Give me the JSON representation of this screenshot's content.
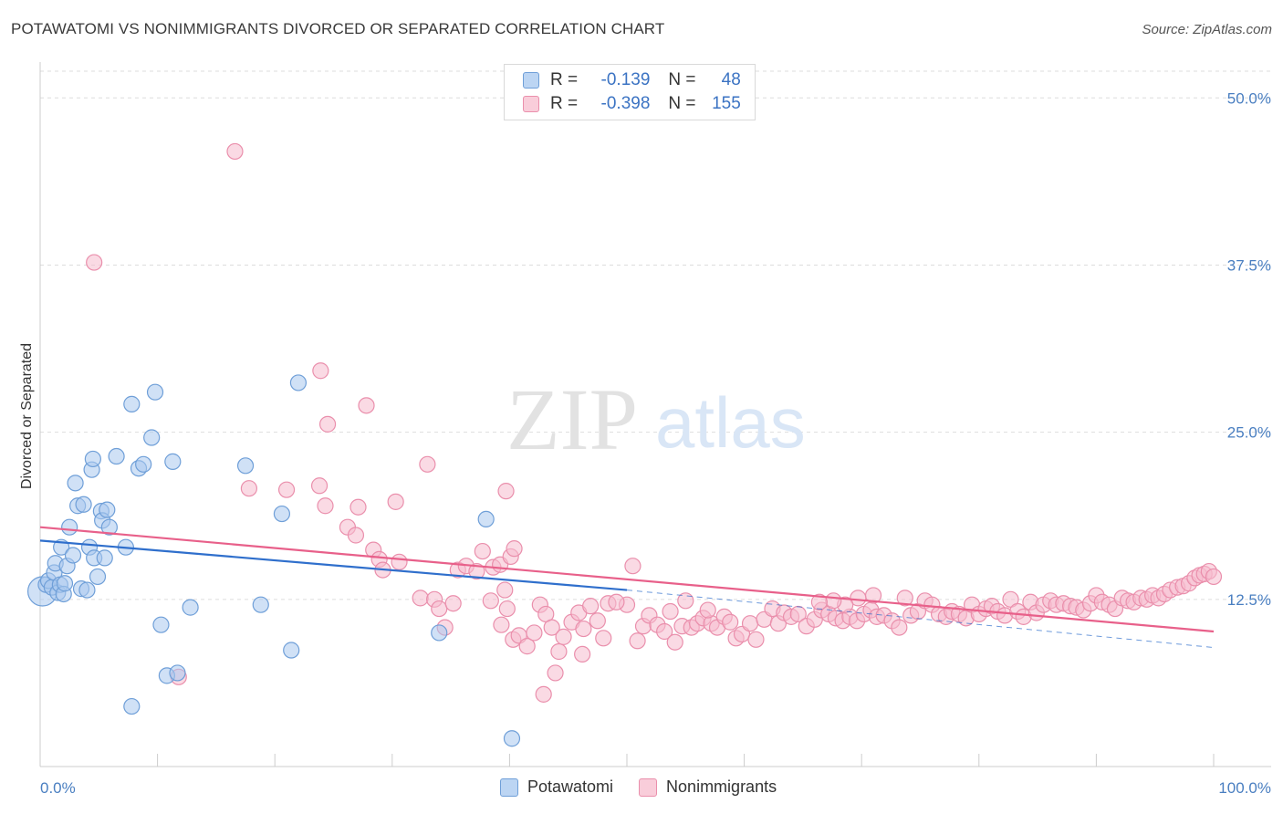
{
  "title": "POTAWATOMI VS NONIMMIGRANTS DIVORCED OR SEPARATED CORRELATION CHART",
  "source": "Source: ZipAtlas.com",
  "watermark": {
    "zip": "ZIP",
    "atlas": "atlas"
  },
  "legend": {
    "rows": [
      {
        "r_label": "R =",
        "r_value": "-0.139",
        "n_label": "N =",
        "n_value": "48"
      },
      {
        "r_label": "R =",
        "r_value": "-0.398",
        "n_label": "N =",
        "n_value": "155"
      }
    ]
  },
  "bottom_legend": [
    "Potawatomi",
    "Nonimmigrants"
  ],
  "colors": {
    "blue_fill": "#a9c8ef",
    "blue_stroke": "#6f9fd8",
    "blue_line": "#2f6fcc",
    "pink_fill": "#f6bccd",
    "pink_stroke": "#ea8fac",
    "pink_line": "#e8608a",
    "grid": "#dddddd",
    "axis_text": "#4a7fc1"
  },
  "chart_data": {
    "type": "scatter",
    "title": "POTAWATOMI VS NONIMMIGRANTS DIVORCED OR SEPARATED CORRELATION CHART",
    "xlabel": "",
    "ylabel": "Divorced or Separated",
    "xlim": [
      0,
      100
    ],
    "ylim": [
      0,
      52
    ],
    "x_tick_labels": [
      "0.0%",
      "100.0%"
    ],
    "y_ticks": [
      12.5,
      25.0,
      37.5,
      50.0
    ],
    "y_tick_labels": [
      "12.5%",
      "25.0%",
      "37.5%",
      "50.0%"
    ],
    "grid": true,
    "legend_position": "top-center",
    "series": [
      {
        "name": "Potawatomi",
        "r": -0.139,
        "n": 48,
        "trend": {
          "x": [
            0,
            50
          ],
          "y": [
            16.9,
            13.2
          ],
          "dashed_to": [
            100,
            8.9
          ]
        },
        "points": [
          [
            0.2,
            13.1
          ],
          [
            0.5,
            13.6
          ],
          [
            0.7,
            13.9
          ],
          [
            1.0,
            13.4
          ],
          [
            1.2,
            14.5
          ],
          [
            1.3,
            15.2
          ],
          [
            1.5,
            13.0
          ],
          [
            1.7,
            13.6
          ],
          [
            1.8,
            16.4
          ],
          [
            2.0,
            12.9
          ],
          [
            2.1,
            13.7
          ],
          [
            2.3,
            15.0
          ],
          [
            2.5,
            17.9
          ],
          [
            2.8,
            15.8
          ],
          [
            3.0,
            21.2
          ],
          [
            3.2,
            19.5
          ],
          [
            3.5,
            13.3
          ],
          [
            3.7,
            19.6
          ],
          [
            4.0,
            13.2
          ],
          [
            4.2,
            16.4
          ],
          [
            4.4,
            22.2
          ],
          [
            4.5,
            23.0
          ],
          [
            4.6,
            15.6
          ],
          [
            4.9,
            14.2
          ],
          [
            5.2,
            19.1
          ],
          [
            5.3,
            18.4
          ],
          [
            5.5,
            15.6
          ],
          [
            5.7,
            19.2
          ],
          [
            5.9,
            17.9
          ],
          [
            6.5,
            23.2
          ],
          [
            7.3,
            16.4
          ],
          [
            7.8,
            27.1
          ],
          [
            8.4,
            22.3
          ],
          [
            8.8,
            22.6
          ],
          [
            9.5,
            24.6
          ],
          [
            9.8,
            28.0
          ],
          [
            10.3,
            10.6
          ],
          [
            10.8,
            6.8
          ],
          [
            11.3,
            22.8
          ],
          [
            11.7,
            7.0
          ],
          [
            12.8,
            11.9
          ],
          [
            17.5,
            22.5
          ],
          [
            18.8,
            12.1
          ],
          [
            20.6,
            18.9
          ],
          [
            21.4,
            8.7
          ],
          [
            22.0,
            28.7
          ],
          [
            34.0,
            10.0
          ],
          [
            38.0,
            18.5
          ],
          [
            40.2,
            2.1
          ],
          [
            7.8,
            4.5
          ]
        ]
      },
      {
        "name": "Nonimmigrants",
        "r": -0.398,
        "n": 155,
        "trend": {
          "x": [
            0,
            100
          ],
          "y": [
            17.9,
            10.1
          ]
        },
        "points": [
          [
            11.8,
            6.7
          ],
          [
            16.6,
            46.0
          ],
          [
            4.6,
            37.7
          ],
          [
            23.9,
            29.6
          ],
          [
            27.8,
            27.0
          ],
          [
            24.5,
            25.6
          ],
          [
            21.0,
            20.7
          ],
          [
            17.8,
            20.8
          ],
          [
            23.8,
            21.0
          ],
          [
            33.0,
            22.6
          ],
          [
            39.7,
            20.6
          ],
          [
            30.3,
            19.8
          ],
          [
            27.1,
            19.4
          ],
          [
            26.2,
            17.9
          ],
          [
            26.9,
            17.3
          ],
          [
            24.3,
            19.5
          ],
          [
            28.4,
            16.2
          ],
          [
            28.9,
            15.5
          ],
          [
            29.2,
            14.7
          ],
          [
            30.6,
            15.3
          ],
          [
            32.4,
            12.6
          ],
          [
            33.6,
            12.5
          ],
          [
            34.5,
            10.4
          ],
          [
            34.0,
            11.8
          ],
          [
            35.2,
            12.2
          ],
          [
            35.6,
            14.7
          ],
          [
            36.3,
            15.0
          ],
          [
            37.7,
            16.1
          ],
          [
            37.2,
            14.6
          ],
          [
            38.6,
            14.9
          ],
          [
            39.2,
            15.1
          ],
          [
            39.6,
            13.2
          ],
          [
            40.1,
            15.7
          ],
          [
            40.4,
            16.3
          ],
          [
            38.4,
            12.4
          ],
          [
            39.3,
            10.6
          ],
          [
            39.8,
            11.8
          ],
          [
            40.3,
            9.5
          ],
          [
            40.8,
            9.8
          ],
          [
            41.5,
            9.0
          ],
          [
            42.1,
            10.0
          ],
          [
            42.6,
            12.1
          ],
          [
            43.1,
            11.4
          ],
          [
            43.6,
            10.4
          ],
          [
            43.9,
            7.0
          ],
          [
            44.2,
            8.6
          ],
          [
            44.6,
            9.7
          ],
          [
            45.3,
            10.8
          ],
          [
            45.9,
            11.5
          ],
          [
            46.3,
            10.3
          ],
          [
            46.9,
            12.0
          ],
          [
            47.5,
            10.9
          ],
          [
            48.0,
            9.6
          ],
          [
            48.4,
            12.2
          ],
          [
            50.0,
            12.1
          ],
          [
            50.5,
            15.0
          ],
          [
            50.9,
            9.4
          ],
          [
            51.4,
            10.5
          ],
          [
            51.9,
            11.3
          ],
          [
            52.6,
            10.6
          ],
          [
            53.2,
            10.1
          ],
          [
            53.7,
            11.6
          ],
          [
            54.1,
            9.3
          ],
          [
            54.7,
            10.5
          ],
          [
            55.5,
            10.4
          ],
          [
            56.0,
            10.7
          ],
          [
            56.5,
            11.1
          ],
          [
            57.2,
            10.7
          ],
          [
            57.7,
            10.4
          ],
          [
            58.3,
            11.2
          ],
          [
            58.8,
            10.8
          ],
          [
            59.3,
            9.6
          ],
          [
            59.8,
            9.9
          ],
          [
            60.5,
            10.7
          ],
          [
            61.0,
            9.5
          ],
          [
            61.7,
            11.0
          ],
          [
            62.4,
            11.8
          ],
          [
            62.9,
            10.7
          ],
          [
            63.4,
            11.5
          ],
          [
            64.0,
            11.2
          ],
          [
            64.6,
            11.4
          ],
          [
            65.3,
            10.5
          ],
          [
            66.0,
            11.0
          ],
          [
            66.6,
            11.7
          ],
          [
            67.2,
            11.4
          ],
          [
            67.8,
            11.1
          ],
          [
            68.4,
            10.9
          ],
          [
            69.0,
            11.2
          ],
          [
            69.6,
            10.9
          ],
          [
            70.2,
            11.4
          ],
          [
            70.8,
            11.7
          ],
          [
            71.3,
            11.2
          ],
          [
            71.9,
            11.3
          ],
          [
            72.6,
            10.9
          ],
          [
            73.2,
            10.4
          ],
          [
            73.7,
            12.6
          ],
          [
            74.2,
            11.3
          ],
          [
            74.8,
            11.6
          ],
          [
            75.4,
            12.4
          ],
          [
            76.0,
            12.1
          ],
          [
            76.6,
            11.4
          ],
          [
            77.2,
            11.2
          ],
          [
            77.7,
            11.6
          ],
          [
            78.3,
            11.4
          ],
          [
            78.9,
            11.1
          ],
          [
            79.4,
            12.1
          ],
          [
            80.0,
            11.4
          ],
          [
            80.6,
            11.8
          ],
          [
            81.1,
            12.0
          ],
          [
            81.6,
            11.6
          ],
          [
            82.2,
            11.3
          ],
          [
            82.7,
            12.5
          ],
          [
            83.3,
            11.6
          ],
          [
            83.8,
            11.2
          ],
          [
            84.4,
            12.3
          ],
          [
            84.9,
            11.5
          ],
          [
            85.5,
            12.1
          ],
          [
            86.1,
            12.4
          ],
          [
            86.6,
            12.1
          ],
          [
            87.2,
            12.2
          ],
          [
            87.8,
            12.0
          ],
          [
            88.3,
            11.9
          ],
          [
            88.9,
            11.7
          ],
          [
            89.5,
            12.2
          ],
          [
            90.0,
            12.8
          ],
          [
            90.5,
            12.3
          ],
          [
            91.1,
            12.1
          ],
          [
            91.6,
            11.8
          ],
          [
            92.2,
            12.6
          ],
          [
            92.7,
            12.4
          ],
          [
            93.2,
            12.3
          ],
          [
            93.8,
            12.6
          ],
          [
            94.3,
            12.5
          ],
          [
            94.8,
            12.8
          ],
          [
            95.3,
            12.6
          ],
          [
            95.8,
            12.9
          ],
          [
            96.3,
            13.2
          ],
          [
            96.9,
            13.4
          ],
          [
            97.4,
            13.5
          ],
          [
            97.9,
            13.7
          ],
          [
            98.4,
            14.1
          ],
          [
            98.8,
            14.3
          ],
          [
            99.2,
            14.4
          ],
          [
            99.6,
            14.6
          ],
          [
            100.0,
            14.2
          ],
          [
            71.0,
            12.8
          ],
          [
            69.7,
            12.6
          ],
          [
            68.6,
            12.1
          ],
          [
            67.6,
            12.4
          ],
          [
            66.4,
            12.3
          ],
          [
            55.0,
            12.4
          ],
          [
            56.9,
            11.7
          ],
          [
            42.9,
            5.4
          ],
          [
            46.2,
            8.4
          ],
          [
            49.1,
            12.3
          ]
        ]
      }
    ]
  }
}
